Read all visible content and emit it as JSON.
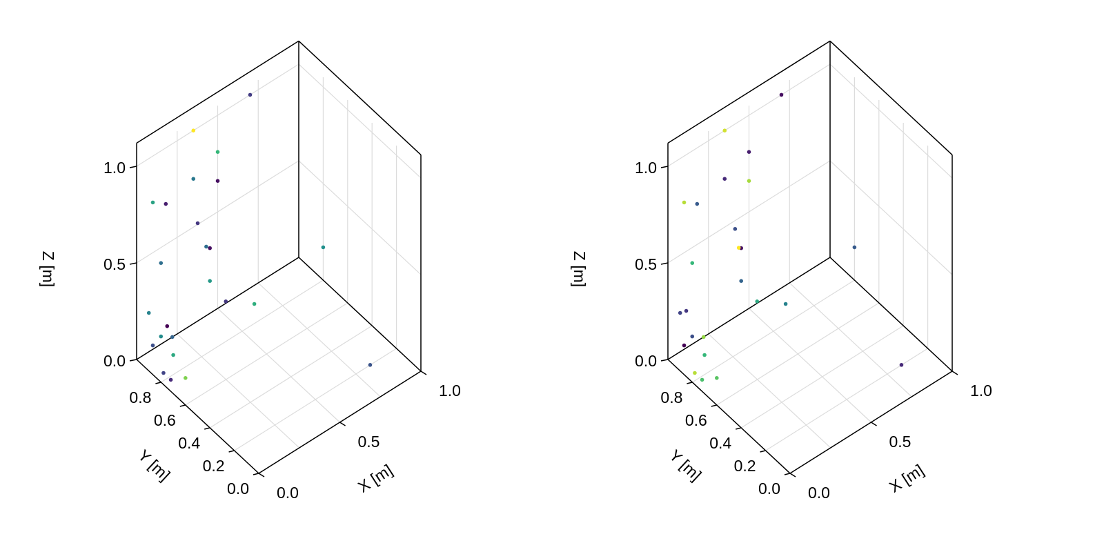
{
  "chart_data": [
    {
      "type": "scatter",
      "projection": "3d",
      "xlabel": "X [m]",
      "ylabel": "Y [m]",
      "zlabel": "Z [m]",
      "xlim": [
        0,
        1
      ],
      "ylim": [
        0,
        1
      ],
      "zlim": [
        0,
        1
      ],
      "x_ticks": [
        "0.0",
        "0.5",
        "1.0"
      ],
      "y_ticks": [
        "0.0",
        "0.2",
        "0.4",
        "0.6",
        "0.8"
      ],
      "z_ticks": [
        "0.0",
        "0.5",
        "1.0"
      ],
      "grid": true,
      "colormap": "viridis",
      "points": [
        {
          "x": 0.0,
          "y": 0.5,
          "z": 1.0,
          "c": 0.2
        },
        {
          "x": 0.0,
          "y": 0.4,
          "z": 0.93,
          "c": 0.05
        },
        {
          "x": 0.0,
          "y": 0.43,
          "z": 0.92,
          "c": 0.45
        },
        {
          "x": 0.0,
          "y": 0.4,
          "z": 0.76,
          "c": 0.65
        },
        {
          "x": 0.0,
          "y": 0.9,
          "z": 0.3,
          "c": 0.55
        },
        {
          "x": 0.0,
          "y": 0.75,
          "z": 0.32,
          "c": 0.0
        },
        {
          "x": 0.0,
          "y": 0.7,
          "z": 0.2,
          "c": 0.7
        },
        {
          "x": 0.0,
          "y": 0.6,
          "z": 0.14,
          "c": 0.85
        },
        {
          "x": 0.0,
          "y": 0.78,
          "z": 0.06,
          "c": 0.25
        },
        {
          "x": 0.0,
          "y": 0.72,
          "z": 0.06,
          "c": 0.15
        },
        {
          "x": 0.35,
          "y": 1.0,
          "z": 1.0,
          "c": 1.0
        },
        {
          "x": 0.7,
          "y": 1.0,
          "z": 1.0,
          "c": 0.22
        },
        {
          "x": 0.1,
          "y": 1.0,
          "z": 0.76,
          "c": 0.68
        },
        {
          "x": 0.18,
          "y": 1.0,
          "z": 0.71,
          "c": 0.1
        },
        {
          "x": 0.35,
          "y": 1.0,
          "z": 0.75,
          "c": 0.5
        },
        {
          "x": 0.5,
          "y": 1.0,
          "z": 0.81,
          "c": 0.75
        },
        {
          "x": 0.5,
          "y": 1.0,
          "z": 0.66,
          "c": 0.05
        },
        {
          "x": 0.15,
          "y": 1.0,
          "z": 0.42,
          "c": 0.45
        },
        {
          "x": 0.15,
          "y": 1.0,
          "z": 0.04,
          "c": 0.6
        },
        {
          "x": 0.1,
          "y": 1.0,
          "z": 0.02,
          "c": 0.3
        },
        {
          "x": 0.22,
          "y": 1.0,
          "z": 0.0,
          "c": 0.4
        },
        {
          "x": 0.55,
          "y": 1.0,
          "z": 0.01,
          "c": 0.2
        },
        {
          "x": 0.5,
          "y": 0.7,
          "z": 0.2,
          "c": 0.72
        },
        {
          "x": 1.0,
          "y": 0.8,
          "z": 0.17,
          "c": 0.62
        },
        {
          "x": 0.8,
          "y": 0.15,
          "z": 0.05,
          "c": 0.32
        }
      ]
    },
    {
      "type": "scatter",
      "projection": "3d",
      "xlabel": "X [m]",
      "ylabel": "Y [m]",
      "zlabel": "Z [m]",
      "xlim": [
        0,
        1
      ],
      "ylim": [
        0,
        1
      ],
      "zlim": [
        0,
        1
      ],
      "x_ticks": [
        "0.0",
        "0.5",
        "1.0"
      ],
      "y_ticks": [
        "0.0",
        "0.2",
        "0.4",
        "0.6",
        "0.8"
      ],
      "z_ticks": [
        "0.0",
        "0.5",
        "1.0"
      ],
      "grid": true,
      "colormap": "viridis",
      "points": [
        {
          "x": 0.0,
          "y": 0.45,
          "z": 1.0,
          "c": 0.3
        },
        {
          "x": 0.0,
          "y": 0.4,
          "z": 0.93,
          "c": 0.05
        },
        {
          "x": 0.0,
          "y": 0.42,
          "z": 0.92,
          "c": 1.0
        },
        {
          "x": 0.0,
          "y": 0.4,
          "z": 0.76,
          "c": 0.4
        },
        {
          "x": 0.0,
          "y": 0.9,
          "z": 0.3,
          "c": 0.25
        },
        {
          "x": 0.0,
          "y": 0.85,
          "z": 0.34,
          "c": 0.2
        },
        {
          "x": 0.0,
          "y": 0.7,
          "z": 0.2,
          "c": 0.75
        },
        {
          "x": 0.0,
          "y": 0.6,
          "z": 0.14,
          "c": 0.8
        },
        {
          "x": 0.0,
          "y": 0.78,
          "z": 0.06,
          "c": 0.92
        },
        {
          "x": 0.0,
          "y": 0.72,
          "z": 0.06,
          "c": 0.78
        },
        {
          "x": 0.35,
          "y": 1.0,
          "z": 1.0,
          "c": 0.95
        },
        {
          "x": 0.7,
          "y": 1.0,
          "z": 1.0,
          "c": 0.05
        },
        {
          "x": 0.1,
          "y": 1.0,
          "z": 0.76,
          "c": 0.92
        },
        {
          "x": 0.18,
          "y": 1.0,
          "z": 0.71,
          "c": 0.35
        },
        {
          "x": 0.35,
          "y": 1.0,
          "z": 0.75,
          "c": 0.15
        },
        {
          "x": 0.5,
          "y": 1.0,
          "z": 0.81,
          "c": 0.1
        },
        {
          "x": 0.5,
          "y": 1.0,
          "z": 0.66,
          "c": 0.9
        },
        {
          "x": 0.15,
          "y": 1.0,
          "z": 0.42,
          "c": 0.75
        },
        {
          "x": 0.15,
          "y": 1.0,
          "z": 0.04,
          "c": 0.3
        },
        {
          "x": 0.1,
          "y": 1.0,
          "z": 0.02,
          "c": 0.0
        },
        {
          "x": 0.22,
          "y": 1.0,
          "z": 0.0,
          "c": 0.88
        },
        {
          "x": 0.55,
          "y": 1.0,
          "z": 0.01,
          "c": 0.7
        },
        {
          "x": 0.5,
          "y": 0.7,
          "z": 0.2,
          "c": 0.55
        },
        {
          "x": 1.0,
          "y": 0.8,
          "z": 0.17,
          "c": 0.35
        },
        {
          "x": 0.8,
          "y": 0.15,
          "z": 0.05,
          "c": 0.15
        }
      ]
    }
  ]
}
